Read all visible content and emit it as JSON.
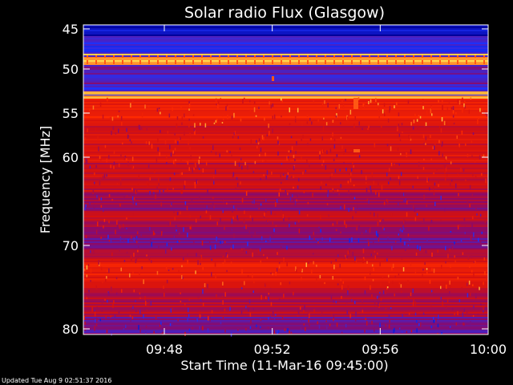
{
  "chart_data": {
    "type": "heatmap",
    "title": "Solar radio Flux (Glasgow)",
    "xlabel": "Start Time (11-Mar-16 09:45:00)",
    "ylabel": "Frequency [MHz]",
    "x_ticks": [
      "09:48",
      "09:52",
      "09:56",
      "10:00"
    ],
    "x_tick_minutes": [
      3,
      7,
      11,
      15
    ],
    "x_range_minutes": [
      0,
      15
    ],
    "y_ticks": [
      45,
      50,
      55,
      60,
      70,
      80
    ],
    "y_range_mhz": [
      44.4,
      80.6
    ],
    "colormap": [
      "#00009a",
      "#1e32ff",
      "#8a0a6a",
      "#d41010",
      "#ff2a00",
      "#ffe050"
    ],
    "bands": [
      {
        "from": 44.4,
        "to": 45.6,
        "level": 0.05
      },
      {
        "from": 45.6,
        "to": 48.0,
        "level": 0.22
      },
      {
        "from": 48.0,
        "to": 49.0,
        "level": 0.95
      },
      {
        "from": 49.0,
        "to": 51.2,
        "level": 0.3
      },
      {
        "from": 51.2,
        "to": 52.5,
        "level": 0.25
      },
      {
        "from": 52.5,
        "to": 53.0,
        "level": 0.9
      },
      {
        "from": 53.0,
        "to": 56.0,
        "level": 0.72
      },
      {
        "from": 56.0,
        "to": 60.5,
        "level": 0.62
      },
      {
        "from": 60.5,
        "to": 64.0,
        "level": 0.56
      },
      {
        "from": 64.0,
        "to": 66.0,
        "level": 0.45
      },
      {
        "from": 66.0,
        "to": 68.0,
        "level": 0.52
      },
      {
        "from": 68.0,
        "to": 70.5,
        "level": 0.38
      },
      {
        "from": 70.5,
        "to": 72.0,
        "level": 0.55
      },
      {
        "from": 72.0,
        "to": 75.0,
        "level": 0.7
      },
      {
        "from": 75.0,
        "to": 78.5,
        "level": 0.5
      },
      {
        "from": 78.5,
        "to": 80.6,
        "level": 0.35
      }
    ],
    "grid": false
  },
  "footer": "Updated Tue Aug  9 02:51:37 2016"
}
